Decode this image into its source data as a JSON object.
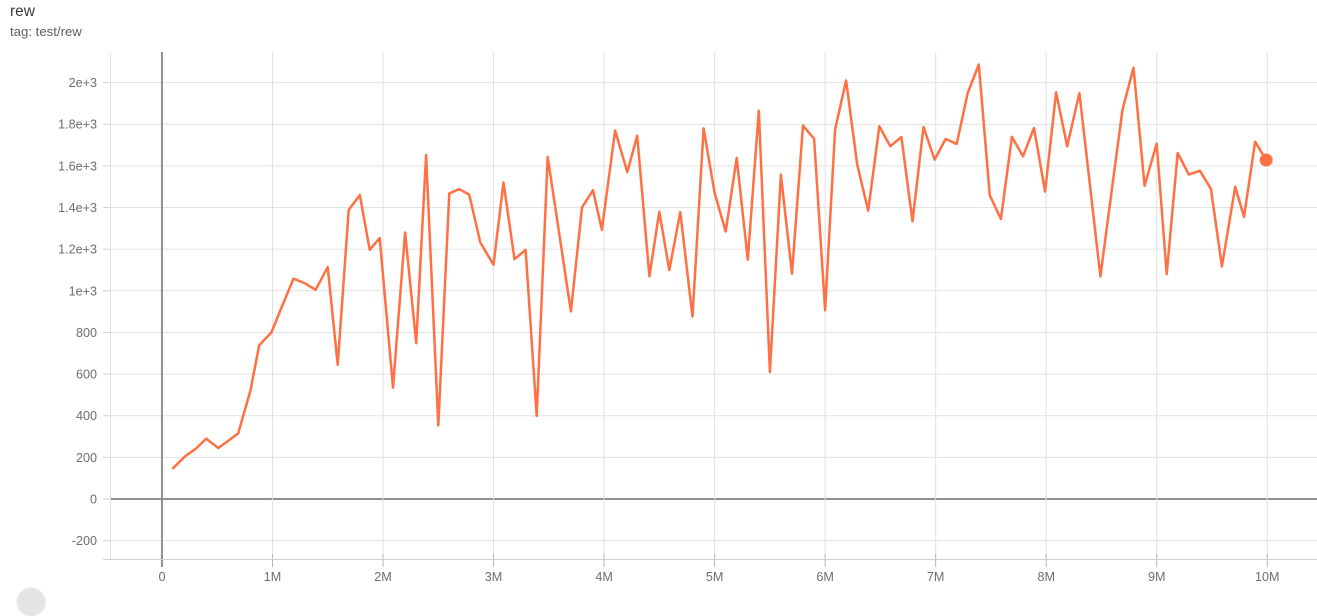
{
  "header": {
    "title": "rew",
    "subtitle": "tag: test/rew"
  },
  "colors": {
    "series": "#ff7043",
    "grid": "#e2e2e2",
    "axis_zero": "#8f8f8f",
    "tick": "#b5b5b5",
    "tick_label": "#6e6e6e",
    "background": "#ffffff",
    "fab_button": "#e4e4e4"
  },
  "chart_data": {
    "type": "line",
    "title": "rew",
    "tag": "test/rew",
    "xlabel": "",
    "ylabel": "",
    "grid": true,
    "legend_position": "none",
    "x_range": [
      -470000,
      10450000
    ],
    "y_range": [
      -293,
      2147
    ],
    "x_ticks": [
      {
        "value": 0,
        "label": "0"
      },
      {
        "value": 1000000,
        "label": "1M"
      },
      {
        "value": 2000000,
        "label": "2M"
      },
      {
        "value": 3000000,
        "label": "3M"
      },
      {
        "value": 4000000,
        "label": "4M"
      },
      {
        "value": 5000000,
        "label": "5M"
      },
      {
        "value": 6000000,
        "label": "6M"
      },
      {
        "value": 7000000,
        "label": "7M"
      },
      {
        "value": 8000000,
        "label": "8M"
      },
      {
        "value": 9000000,
        "label": "9M"
      },
      {
        "value": 10000000,
        "label": "10M"
      }
    ],
    "y_ticks": [
      {
        "value": -200,
        "label": "-200"
      },
      {
        "value": 0,
        "label": "0"
      },
      {
        "value": 200,
        "label": "200"
      },
      {
        "value": 400,
        "label": "400"
      },
      {
        "value": 600,
        "label": "600"
      },
      {
        "value": 800,
        "label": "800"
      },
      {
        "value": 1000,
        "label": "1e+3"
      },
      {
        "value": 1200,
        "label": "1.2e+3"
      },
      {
        "value": 1400,
        "label": "1.4e+3"
      },
      {
        "value": 1600,
        "label": "1.6e+3"
      },
      {
        "value": 1800,
        "label": "1.8e+3"
      },
      {
        "value": 2000,
        "label": "2e+3"
      }
    ],
    "series": [
      {
        "name": "test/rew",
        "color": "#ff7043",
        "end_marker": true,
        "points": [
          [
            100000,
            148
          ],
          [
            210000,
            205
          ],
          [
            310000,
            243
          ],
          [
            400000,
            290
          ],
          [
            510000,
            245
          ],
          [
            600000,
            280
          ],
          [
            690000,
            315
          ],
          [
            800000,
            520
          ],
          [
            880000,
            738
          ],
          [
            990000,
            800
          ],
          [
            1090000,
            930
          ],
          [
            1190000,
            1058
          ],
          [
            1290000,
            1037
          ],
          [
            1390000,
            1005
          ],
          [
            1500000,
            1114
          ],
          [
            1590000,
            645
          ],
          [
            1690000,
            1388
          ],
          [
            1790000,
            1460
          ],
          [
            1880000,
            1197
          ],
          [
            1970000,
            1253
          ],
          [
            2090000,
            535
          ],
          [
            2200000,
            1280
          ],
          [
            2300000,
            748
          ],
          [
            2390000,
            1652
          ],
          [
            2500000,
            353
          ],
          [
            2600000,
            1468
          ],
          [
            2690000,
            1488
          ],
          [
            2780000,
            1462
          ],
          [
            2880000,
            1232
          ],
          [
            3000000,
            1125
          ],
          [
            3090000,
            1520
          ],
          [
            3190000,
            1152
          ],
          [
            3290000,
            1197
          ],
          [
            3390000,
            399
          ],
          [
            3490000,
            1643
          ],
          [
            3700000,
            901
          ],
          [
            3800000,
            1400
          ],
          [
            3900000,
            1483
          ],
          [
            3980000,
            1293
          ],
          [
            4100000,
            1770
          ],
          [
            4210000,
            1570
          ],
          [
            4300000,
            1745
          ],
          [
            4410000,
            1070
          ],
          [
            4500000,
            1380
          ],
          [
            4590000,
            1100
          ],
          [
            4690000,
            1378
          ],
          [
            4800000,
            876
          ],
          [
            4900000,
            1780
          ],
          [
            5000000,
            1470
          ],
          [
            5100000,
            1285
          ],
          [
            5200000,
            1638
          ],
          [
            5300000,
            1150
          ],
          [
            5400000,
            1865
          ],
          [
            5500000,
            610
          ],
          [
            5600000,
            1558
          ],
          [
            5700000,
            1082
          ],
          [
            5800000,
            1794
          ],
          [
            5900000,
            1730
          ],
          [
            6000000,
            907
          ],
          [
            6090000,
            1775
          ],
          [
            6190000,
            2010
          ],
          [
            6290000,
            1606
          ],
          [
            6390000,
            1385
          ],
          [
            6490000,
            1790
          ],
          [
            6590000,
            1694
          ],
          [
            6690000,
            1739
          ],
          [
            6790000,
            1334
          ],
          [
            6890000,
            1787
          ],
          [
            6990000,
            1630
          ],
          [
            7090000,
            1729
          ],
          [
            7190000,
            1705
          ],
          [
            7290000,
            1950
          ],
          [
            7390000,
            2087
          ],
          [
            7490000,
            1458
          ],
          [
            7590000,
            1345
          ],
          [
            7690000,
            1739
          ],
          [
            7790000,
            1646
          ],
          [
            7890000,
            1782
          ],
          [
            7990000,
            1477
          ],
          [
            8090000,
            1953
          ],
          [
            8190000,
            1694
          ],
          [
            8300000,
            1950
          ],
          [
            8490000,
            1069
          ],
          [
            8590000,
            1470
          ],
          [
            8690000,
            1870
          ],
          [
            8790000,
            2071
          ],
          [
            8890000,
            1505
          ],
          [
            9000000,
            1707
          ],
          [
            9090000,
            1080
          ],
          [
            9190000,
            1662
          ],
          [
            9290000,
            1558
          ],
          [
            9390000,
            1577
          ],
          [
            9490000,
            1490
          ],
          [
            9590000,
            1117
          ],
          [
            9710000,
            1499
          ],
          [
            9790000,
            1355
          ],
          [
            9890000,
            1716
          ],
          [
            9990000,
            1628
          ]
        ]
      }
    ]
  }
}
